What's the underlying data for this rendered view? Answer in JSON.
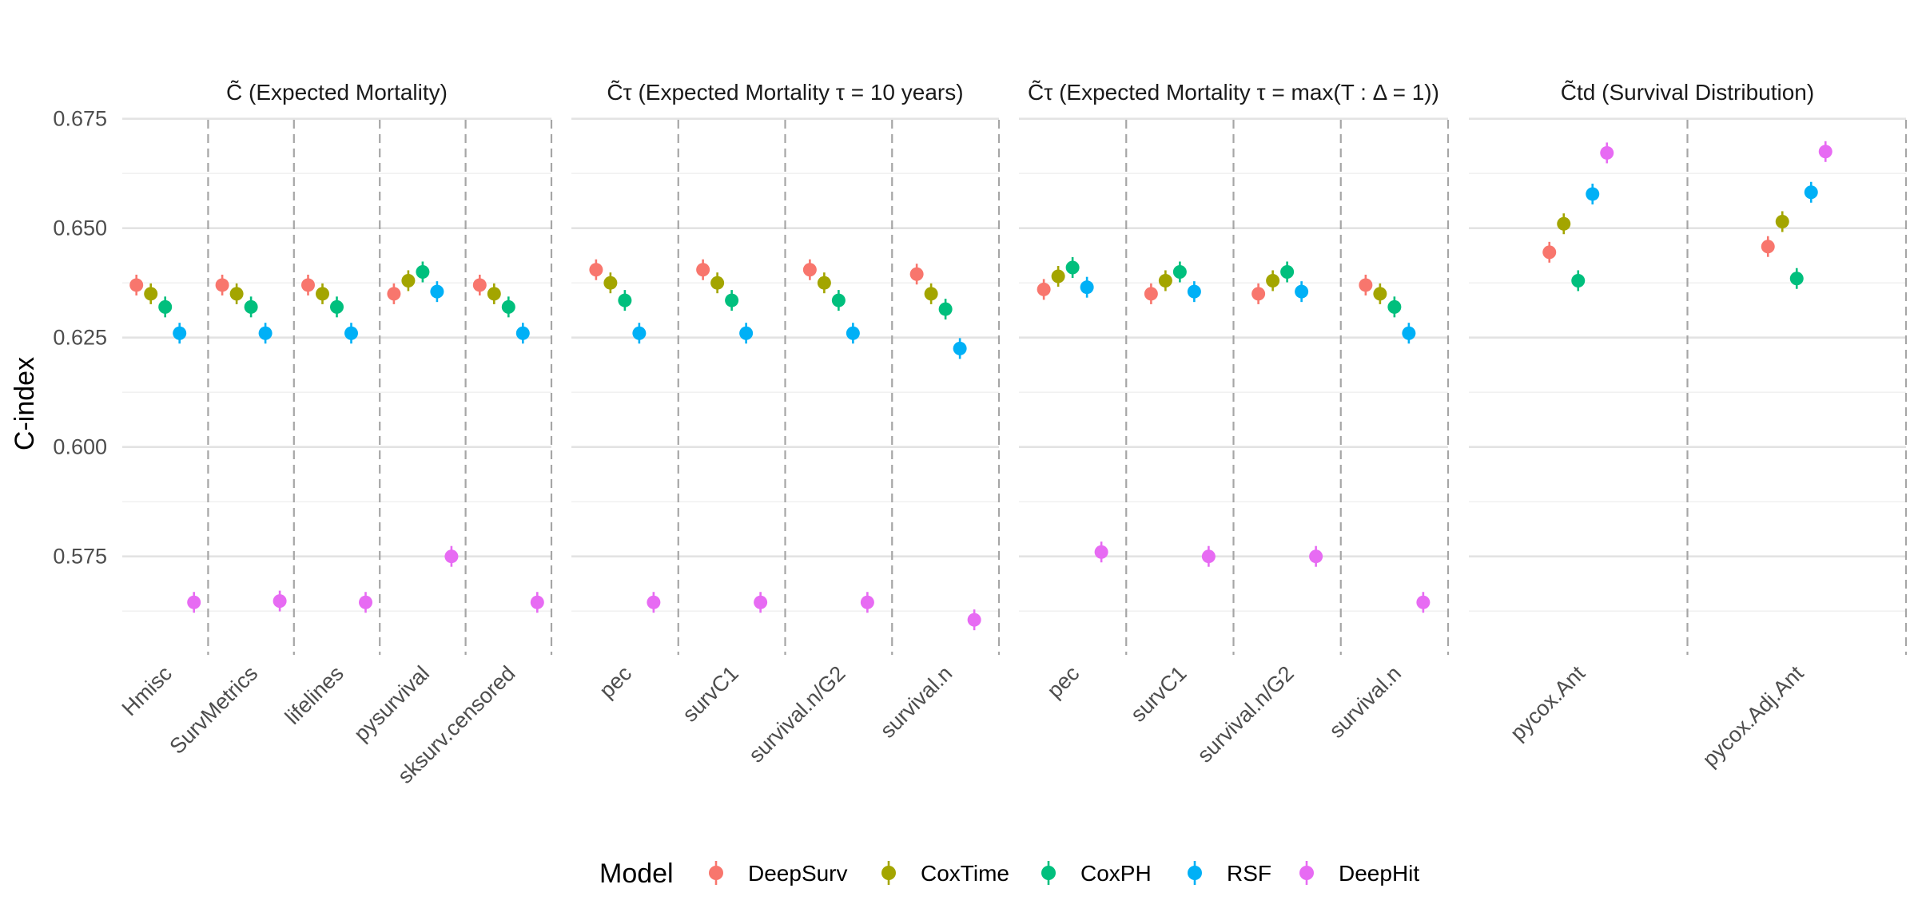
{
  "chart_data": {
    "type": "scatter",
    "ylabel": "C-index",
    "ylim": [
      0.5525,
      0.6775
    ],
    "yticks": [
      "0.575",
      "0.600",
      "0.625",
      "0.650",
      "0.675"
    ],
    "ytick_values": [
      0.575,
      0.6,
      0.625,
      0.65,
      0.675
    ],
    "grid": true,
    "legend": {
      "title": "Model",
      "position": "bottom",
      "entries": [
        "DeepSurv",
        "CoxTime",
        "CoxPH",
        "RSF",
        "DeepHit"
      ]
    },
    "colors": {
      "DeepSurv": "#F8766D",
      "CoxTime": "#A3A500",
      "CoxPH": "#00BF7D",
      "RSF": "#00B0F6",
      "DeepHit": "#E76BF3"
    },
    "panels": [
      {
        "title": "C̃ (Expected Mortality)",
        "categories": [
          "Hmisc",
          "SurvMetrics",
          "lifelines",
          "pysurvival",
          "sksurv.censored"
        ],
        "series": [
          {
            "name": "DeepSurv",
            "values": [
              0.637,
              0.637,
              0.637,
              0.635,
              0.637
            ]
          },
          {
            "name": "CoxTime",
            "values": [
              0.635,
              0.635,
              0.635,
              0.638,
              0.635
            ]
          },
          {
            "name": "CoxPH",
            "values": [
              0.632,
              0.632,
              0.632,
              0.64,
              0.632
            ]
          },
          {
            "name": "RSF",
            "values": [
              0.626,
              0.626,
              0.626,
              0.6355,
              0.626
            ]
          },
          {
            "name": "DeepHit",
            "values": [
              0.5645,
              0.5648,
              0.5645,
              0.575,
              0.5645
            ]
          }
        ]
      },
      {
        "title": "C̃τ (Expected Mortality τ = 10 years)",
        "categories": [
          "pec",
          "survC1",
          "survival.n/G2",
          "survival.n"
        ],
        "series": [
          {
            "name": "DeepSurv",
            "values": [
              0.6405,
              0.6405,
              0.6405,
              0.6395
            ]
          },
          {
            "name": "CoxTime",
            "values": [
              0.6375,
              0.6375,
              0.6375,
              0.635
            ]
          },
          {
            "name": "CoxPH",
            "values": [
              0.6335,
              0.6335,
              0.6335,
              0.6315
            ]
          },
          {
            "name": "RSF",
            "values": [
              0.626,
              0.626,
              0.626,
              0.6225
            ]
          },
          {
            "name": "DeepHit",
            "values": [
              0.5645,
              0.5645,
              0.5645,
              0.5605
            ]
          }
        ]
      },
      {
        "title": "C̃τ (Expected Mortality τ = max(T :  Δ = 1))",
        "categories": [
          "pec",
          "survC1",
          "survival.n/G2",
          "survival.n"
        ],
        "series": [
          {
            "name": "DeepSurv",
            "values": [
              0.636,
              0.635,
              0.635,
              0.637
            ]
          },
          {
            "name": "CoxTime",
            "values": [
              0.639,
              0.638,
              0.638,
              0.635
            ]
          },
          {
            "name": "CoxPH",
            "values": [
              0.641,
              0.64,
              0.64,
              0.632
            ]
          },
          {
            "name": "RSF",
            "values": [
              0.6365,
              0.6355,
              0.6355,
              0.626
            ]
          },
          {
            "name": "DeepHit",
            "values": [
              0.576,
              0.575,
              0.575,
              0.5645
            ]
          }
        ]
      },
      {
        "title": "C̃td (Survival Distribution)",
        "categories": [
          "pycox.Ant",
          "pycox.Adj.Ant"
        ],
        "series": [
          {
            "name": "DeepSurv",
            "values": [
              0.6445,
              0.6458
            ]
          },
          {
            "name": "CoxTime",
            "values": [
              0.651,
              0.6515
            ]
          },
          {
            "name": "CoxPH",
            "values": [
              0.638,
              0.6385
            ]
          },
          {
            "name": "RSF",
            "values": [
              0.6578,
              0.6582
            ]
          },
          {
            "name": "DeepHit",
            "values": [
              0.6672,
              0.6675
            ]
          }
        ]
      }
    ]
  }
}
